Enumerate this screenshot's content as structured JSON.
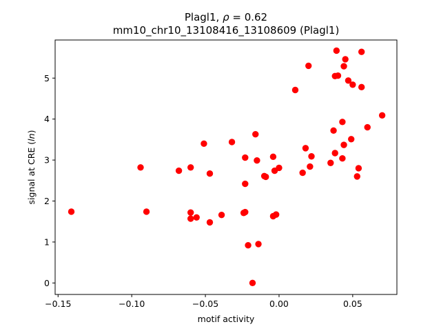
{
  "chart_data": {
    "type": "scatter",
    "title_line1_prefix": "Plagl1, ",
    "title_line1_rho": "ρ",
    "title_line1_suffix": " = 0.62",
    "title_line2": "mm10_chr10_13108416_13108609 (Plagl1)",
    "xlabel": "motif activity",
    "ylabel_prefix": "signal at CRE (",
    "ylabel_italic": "ln",
    "ylabel_suffix": ")",
    "xlim": [
      -0.152,
      0.08
    ],
    "ylim": [
      -0.28,
      5.93
    ],
    "x_ticks": [
      -0.15,
      -0.1,
      -0.05,
      0.0,
      0.05
    ],
    "x_tick_labels": [
      "−0.15",
      "−0.10",
      "−0.05",
      "0.00",
      "0.05"
    ],
    "y_ticks": [
      0,
      1,
      2,
      3,
      4,
      5
    ],
    "y_tick_labels": [
      "0",
      "1",
      "2",
      "3",
      "4",
      "5"
    ],
    "grid": false,
    "marker_color": "#ff0000",
    "points": [
      {
        "x": -0.141,
        "y": 1.74
      },
      {
        "x": -0.094,
        "y": 2.82
      },
      {
        "x": -0.09,
        "y": 1.74
      },
      {
        "x": -0.068,
        "y": 2.74
      },
      {
        "x": -0.06,
        "y": 2.82
      },
      {
        "x": -0.06,
        "y": 1.72
      },
      {
        "x": -0.06,
        "y": 1.57
      },
      {
        "x": -0.056,
        "y": 1.6
      },
      {
        "x": -0.051,
        "y": 3.4
      },
      {
        "x": -0.047,
        "y": 2.67
      },
      {
        "x": -0.047,
        "y": 1.48
      },
      {
        "x": -0.039,
        "y": 1.66
      },
      {
        "x": -0.032,
        "y": 3.44
      },
      {
        "x": -0.024,
        "y": 1.71
      },
      {
        "x": -0.023,
        "y": 1.73
      },
      {
        "x": -0.023,
        "y": 3.06
      },
      {
        "x": -0.023,
        "y": 2.42
      },
      {
        "x": -0.021,
        "y": 0.92
      },
      {
        "x": -0.018,
        "y": 0.0
      },
      {
        "x": -0.016,
        "y": 3.63
      },
      {
        "x": -0.015,
        "y": 2.99
      },
      {
        "x": -0.014,
        "y": 0.95
      },
      {
        "x": -0.01,
        "y": 2.61
      },
      {
        "x": -0.009,
        "y": 2.59
      },
      {
        "x": -0.004,
        "y": 3.08
      },
      {
        "x": -0.004,
        "y": 1.63
      },
      {
        "x": -0.003,
        "y": 2.74
      },
      {
        "x": -0.002,
        "y": 1.67
      },
      {
        "x": 0.0,
        "y": 2.81
      },
      {
        "x": 0.011,
        "y": 4.71
      },
      {
        "x": 0.016,
        "y": 2.69
      },
      {
        "x": 0.018,
        "y": 3.29
      },
      {
        "x": 0.02,
        "y": 5.3
      },
      {
        "x": 0.021,
        "y": 2.84
      },
      {
        "x": 0.022,
        "y": 3.09
      },
      {
        "x": 0.035,
        "y": 2.93
      },
      {
        "x": 0.037,
        "y": 3.72
      },
      {
        "x": 0.038,
        "y": 3.17
      },
      {
        "x": 0.038,
        "y": 5.05
      },
      {
        "x": 0.039,
        "y": 5.67
      },
      {
        "x": 0.04,
        "y": 5.06
      },
      {
        "x": 0.043,
        "y": 3.04
      },
      {
        "x": 0.043,
        "y": 3.93
      },
      {
        "x": 0.044,
        "y": 3.37
      },
      {
        "x": 0.044,
        "y": 5.29
      },
      {
        "x": 0.045,
        "y": 5.46
      },
      {
        "x": 0.047,
        "y": 4.94
      },
      {
        "x": 0.049,
        "y": 3.51
      },
      {
        "x": 0.05,
        "y": 4.84
      },
      {
        "x": 0.053,
        "y": 2.6
      },
      {
        "x": 0.054,
        "y": 2.8
      },
      {
        "x": 0.056,
        "y": 4.78
      },
      {
        "x": 0.056,
        "y": 5.64
      },
      {
        "x": 0.06,
        "y": 3.8
      },
      {
        "x": 0.07,
        "y": 4.09
      }
    ]
  }
}
